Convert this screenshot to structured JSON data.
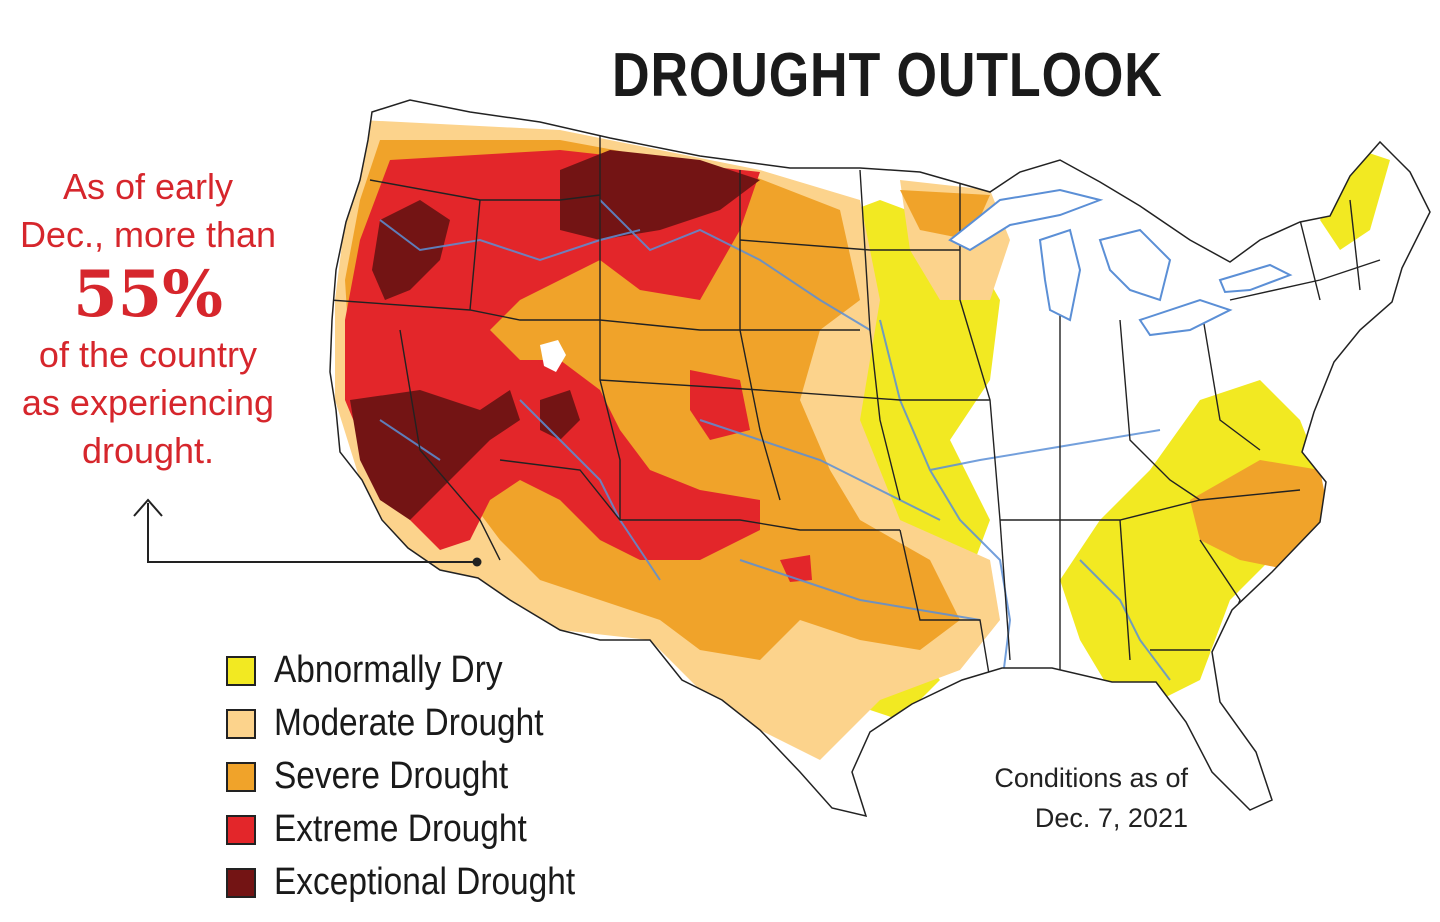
{
  "title": "DROUGHT OUTLOOK",
  "callout": {
    "line1": "As of early",
    "line2": "Dec., more than",
    "percent": "55%",
    "line3": "of the country",
    "line4": "as experiencing",
    "line5": "drought."
  },
  "legend": [
    {
      "label": "Abnormally Dry",
      "color": "#f2e922"
    },
    {
      "label": "Moderate Drought",
      "color": "#fcd38c"
    },
    {
      "label": "Severe Drought",
      "color": "#f0a32a"
    },
    {
      "label": "Extreme Drought",
      "color": "#e3262a"
    },
    {
      "label": "Exceptional Drought",
      "color": "#731414"
    }
  ],
  "note": {
    "line1": "Conditions as of",
    "line2": "Dec. 7, 2021"
  },
  "colors": {
    "callout_text": "#d6262c",
    "title_text": "#1a1a1a",
    "state_borders": "#222222",
    "rivers": "#5b8fd6"
  }
}
